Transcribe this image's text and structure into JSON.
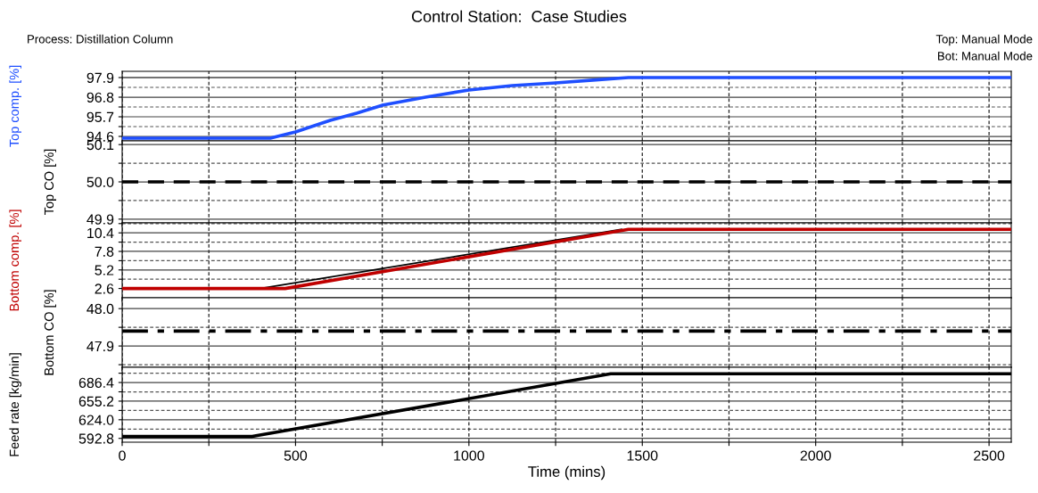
{
  "chart_data": [
    {
      "type": "line",
      "title": "Control Station:  Case Studies",
      "annotations": [
        "Process: Distillation Column",
        "Top: Manual Mode",
        "Bot: Manual Mode"
      ],
      "ylabel": "Top comp. [%]",
      "xlim": [
        0,
        2564
      ],
      "ylim": [
        94.35,
        98.25
      ],
      "tick_labels": "y",
      "grid": true,
      "xticks": [
        0,
        {
          "value": 250,
          "label": null
        },
        500,
        {
          "value": 750,
          "label": null
        },
        1000,
        {
          "value": 1250,
          "label": null
        },
        1500,
        {
          "value": 1750,
          "label": null
        },
        2000,
        {
          "value": 2250,
          "label": null
        },
        2500
      ],
      "yticks": [
        94.6,
        {
          "value": 95.15,
          "label": null
        },
        95.7,
        {
          "value": 96.25,
          "label": null
        },
        96.8,
        {
          "value": 97.35,
          "label": null
        },
        97.9
      ],
      "series": [
        {
          "color": "#1f4fff",
          "line_style": "solid",
          "x": [
            0,
            427,
            500,
            600,
            676,
            753,
            875,
            1000,
            1125,
            1250,
            1375,
            1460,
            2564
          ],
          "values": [
            94.5,
            94.5,
            94.85,
            95.5,
            95.9,
            96.36,
            96.8,
            97.2,
            97.45,
            97.6,
            97.78,
            97.9,
            97.9
          ]
        }
      ]
    },
    {
      "type": "line",
      "ylabel": "Top CO [%]",
      "xlim": [
        0,
        2564
      ],
      "ylim": [
        49.89,
        50.11
      ],
      "tick_labels": "y",
      "grid": true,
      "xticks": [
        0,
        {
          "value": 250,
          "label": null
        },
        500,
        {
          "value": 750,
          "label": null
        },
        1000,
        {
          "value": 1250,
          "label": null
        },
        1500,
        {
          "value": 1750,
          "label": null
        },
        2000,
        {
          "value": 2250,
          "label": null
        },
        2500
      ],
      "yticks": [
        {
          "value": 49.9,
          "label": "49.9"
        },
        {
          "value": 49.95,
          "label": null
        },
        {
          "value": 50.0,
          "label": "50.0"
        },
        {
          "value": 50.05,
          "label": null
        },
        {
          "value": 50.1,
          "label": "50.1"
        }
      ],
      "series": [
        {
          "color": "#000000",
          "line_style": "dashed",
          "x": [
            0,
            2564
          ],
          "values": [
            50.0,
            50.0
          ]
        }
      ]
    },
    {
      "type": "line",
      "ylabel": "Bottom comp. [%]",
      "xlim": [
        0,
        2564
      ],
      "ylim": [
        1.3,
        11.8
      ],
      "tick_labels": "y",
      "grid": true,
      "xticks": [
        0,
        {
          "value": 250,
          "label": null
        },
        500,
        {
          "value": 750,
          "label": null
        },
        1000,
        {
          "value": 1250,
          "label": null
        },
        1500,
        {
          "value": 1750,
          "label": null
        },
        2000,
        {
          "value": 2250,
          "label": null
        },
        2500
      ],
      "yticks": [
        2.6,
        {
          "value": 3.9,
          "label": null
        },
        5.2,
        {
          "value": 6.5,
          "label": null
        },
        7.8,
        {
          "value": 9.1,
          "label": null
        },
        10.4,
        {
          "value": 11.7,
          "label": null
        }
      ],
      "series": [
        {
          "color": "#000000",
          "line_style": "solid",
          "x": [
            0,
            410,
            1440
          ],
          "values": [
            2.7,
            2.7,
            10.9
          ]
        },
        {
          "color": "#c00000",
          "line_style": "solid",
          "x": [
            0,
            470,
            1460,
            2564
          ],
          "values": [
            2.6,
            2.6,
            10.9,
            10.9
          ]
        }
      ]
    },
    {
      "type": "line",
      "ylabel": "Bottom CO [%]",
      "xlim": [
        0,
        2564
      ],
      "ylim": [
        47.843,
        48.029
      ],
      "tick_labels": "y",
      "grid": true,
      "xticks": [
        0,
        {
          "value": 250,
          "label": null
        },
        500,
        {
          "value": 750,
          "label": null
        },
        1000,
        {
          "value": 1250,
          "label": null
        },
        1500,
        {
          "value": 1750,
          "label": null
        },
        2000,
        {
          "value": 2250,
          "label": null
        },
        2500
      ],
      "yticks": [
        {
          "value": 47.85,
          "label": null
        },
        47.9,
        {
          "value": 47.95,
          "label": null
        },
        {
          "value": 48.0,
          "label": "48.0"
        }
      ],
      "series": [
        {
          "color": "#000000",
          "line_style": "dashdot",
          "x": [
            0,
            2564
          ],
          "values": [
            47.94,
            47.94
          ]
        }
      ]
    },
    {
      "type": "line",
      "ylabel": "Feed rate [kg/min]",
      "xlabel": "Time (mins)",
      "xlim": [
        0,
        2564
      ],
      "ylim": [
        586.4,
        711.9
      ],
      "grid": true,
      "xticks": [
        0,
        {
          "value": 250,
          "label": null
        },
        500,
        {
          "value": 750,
          "label": null
        },
        1000,
        {
          "value": 1250,
          "label": null
        },
        1500,
        {
          "value": 1750,
          "label": null
        },
        2000,
        {
          "value": 2250,
          "label": null
        },
        2500
      ],
      "yticks": [
        592.8,
        {
          "value": 608.4,
          "label": null
        },
        {
          "value": 624.0,
          "label": "624.0"
        },
        {
          "value": 639.6,
          "label": null
        },
        655.2,
        {
          "value": 670.8,
          "label": null
        },
        686.4,
        {
          "value": 702.0,
          "label": null
        }
      ],
      "series": [
        {
          "color": "#000000",
          "line_style": "solid",
          "x": [
            0,
            375,
            1409,
            2564
          ],
          "values": [
            596,
            596,
            701,
            701
          ]
        }
      ]
    }
  ]
}
